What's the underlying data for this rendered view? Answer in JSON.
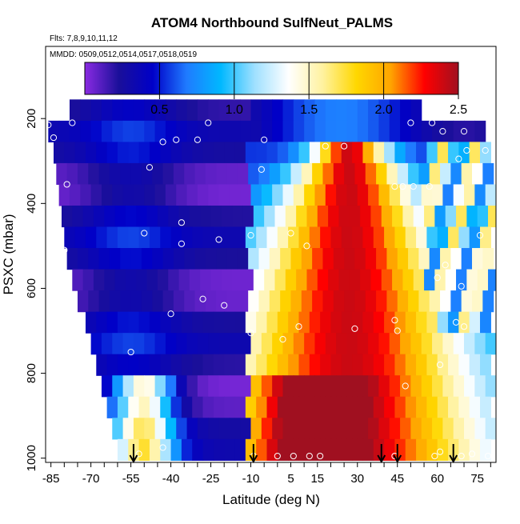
{
  "header": {
    "title": "ATOM4 Northbound SulfNeut_PALMS",
    "flights": "Flts: 7,8,9,10,11,12",
    "dates": "MMDD: 0509,0512,0514,0517,0518,0519"
  },
  "colorbar": {
    "range": [
      0,
      2.5
    ],
    "ticks": [
      0.5,
      1.0,
      1.5,
      2.0,
      2.5
    ],
    "tick_labels": [
      "0.5",
      "1.0",
      "1.5",
      "2.0",
      "2.5"
    ],
    "colormap": [
      "#8a2be2",
      "#1a0f9a",
      "#0000c8",
      "#1f7bff",
      "#00b8ff",
      "#9fe0ff",
      "#ffffff",
      "#fff2a0",
      "#ffd700",
      "#ffa500",
      "#ff0000",
      "#a01020"
    ]
  },
  "chart_data": {
    "type": "heatmap",
    "title": "ATOM4 Northbound SulfNeut_PALMS",
    "xlabel": "Latitude (deg N)",
    "ylabel": "PSXC (mbar)",
    "x_ticks": [
      -85,
      -70,
      -55,
      -40,
      -25,
      -10,
      5,
      15,
      30,
      45,
      60,
      75
    ],
    "y_ticks": [
      200,
      400,
      600,
      800,
      1000
    ],
    "xlim": [
      -87,
      82
    ],
    "ylim": [
      1010,
      30
    ],
    "y_reversed": true,
    "value_range": [
      0,
      2.5
    ],
    "pressure_levels": [
      180,
      230,
      280,
      330,
      380,
      430,
      480,
      530,
      580,
      630,
      680,
      730,
      780,
      830,
      880,
      930,
      980
    ],
    "lat_ranges": [
      [
        -78,
        54
      ],
      [
        -86,
        76
      ],
      [
        -84,
        80
      ],
      [
        -83,
        80
      ],
      [
        -82,
        80
      ],
      [
        -81,
        80
      ],
      [
        -80,
        80
      ],
      [
        -79,
        80
      ],
      [
        -77,
        80
      ],
      [
        -75,
        80
      ],
      [
        -72,
        80
      ],
      [
        -70,
        80
      ],
      [
        -68,
        80
      ],
      [
        -66,
        80
      ],
      [
        -64,
        80
      ],
      [
        -62,
        80
      ],
      [
        -60,
        80
      ]
    ],
    "profile_latitudes": [
      -54,
      -9,
      39,
      45,
      66
    ],
    "observation_points": [
      {
        "lat": -86,
        "p": 215
      },
      {
        "lat": -77,
        "p": 210
      },
      {
        "lat": -84,
        "p": 245
      },
      {
        "lat": -43,
        "p": 255
      },
      {
        "lat": -38,
        "p": 250
      },
      {
        "lat": -26,
        "p": 210
      },
      {
        "lat": -30,
        "p": 250
      },
      {
        "lat": -5,
        "p": 250
      },
      {
        "lat": 50,
        "p": 210
      },
      {
        "lat": 58,
        "p": 210
      },
      {
        "lat": 62,
        "p": 230
      },
      {
        "lat": 70,
        "p": 230
      },
      {
        "lat": 71,
        "p": 275
      },
      {
        "lat": 78,
        "p": 275
      },
      {
        "lat": 68,
        "p": 295
      },
      {
        "lat": 18,
        "p": 265
      },
      {
        "lat": 25,
        "p": 265
      },
      {
        "lat": -48,
        "p": 315
      },
      {
        "lat": -6,
        "p": 320
      },
      {
        "lat": 44,
        "p": 360
      },
      {
        "lat": 47,
        "p": 360
      },
      {
        "lat": 51,
        "p": 360
      },
      {
        "lat": 57,
        "p": 360
      },
      {
        "lat": -79,
        "p": 355
      },
      {
        "lat": -36,
        "p": 445
      },
      {
        "lat": -10,
        "p": 475
      },
      {
        "lat": 5,
        "p": 470
      },
      {
        "lat": 11,
        "p": 500
      },
      {
        "lat": -22,
        "p": 485
      },
      {
        "lat": -50,
        "p": 470
      },
      {
        "lat": -36,
        "p": 495
      },
      {
        "lat": -80,
        "p": 510
      },
      {
        "lat": 76,
        "p": 475
      },
      {
        "lat": 63,
        "p": 545
      },
      {
        "lat": 60,
        "p": 575
      },
      {
        "lat": 69,
        "p": 595
      },
      {
        "lat": -28,
        "p": 625
      },
      {
        "lat": -20,
        "p": 640
      },
      {
        "lat": -40,
        "p": 660
      },
      {
        "lat": 44,
        "p": 675
      },
      {
        "lat": 45,
        "p": 700
      },
      {
        "lat": 67,
        "p": 680
      },
      {
        "lat": 70,
        "p": 690
      },
      {
        "lat": 8,
        "p": 690
      },
      {
        "lat": 29,
        "p": 695
      },
      {
        "lat": -10,
        "p": 705
      },
      {
        "lat": 2,
        "p": 720
      },
      {
        "lat": -55,
        "p": 750
      },
      {
        "lat": 61,
        "p": 780
      },
      {
        "lat": 48,
        "p": 830
      },
      {
        "lat": -43,
        "p": 975
      },
      {
        "lat": -52,
        "p": 990
      },
      {
        "lat": -9,
        "p": 995
      },
      {
        "lat": 0,
        "p": 995
      },
      {
        "lat": 6,
        "p": 995
      },
      {
        "lat": 12,
        "p": 995
      },
      {
        "lat": 16,
        "p": 995
      },
      {
        "lat": 44,
        "p": 995
      },
      {
        "lat": 59,
        "p": 995
      },
      {
        "lat": 61,
        "p": 985
      },
      {
        "lat": 69,
        "p": 995
      },
      {
        "lat": 73,
        "p": 990
      },
      {
        "lat": 79,
        "p": 995
      }
    ]
  }
}
